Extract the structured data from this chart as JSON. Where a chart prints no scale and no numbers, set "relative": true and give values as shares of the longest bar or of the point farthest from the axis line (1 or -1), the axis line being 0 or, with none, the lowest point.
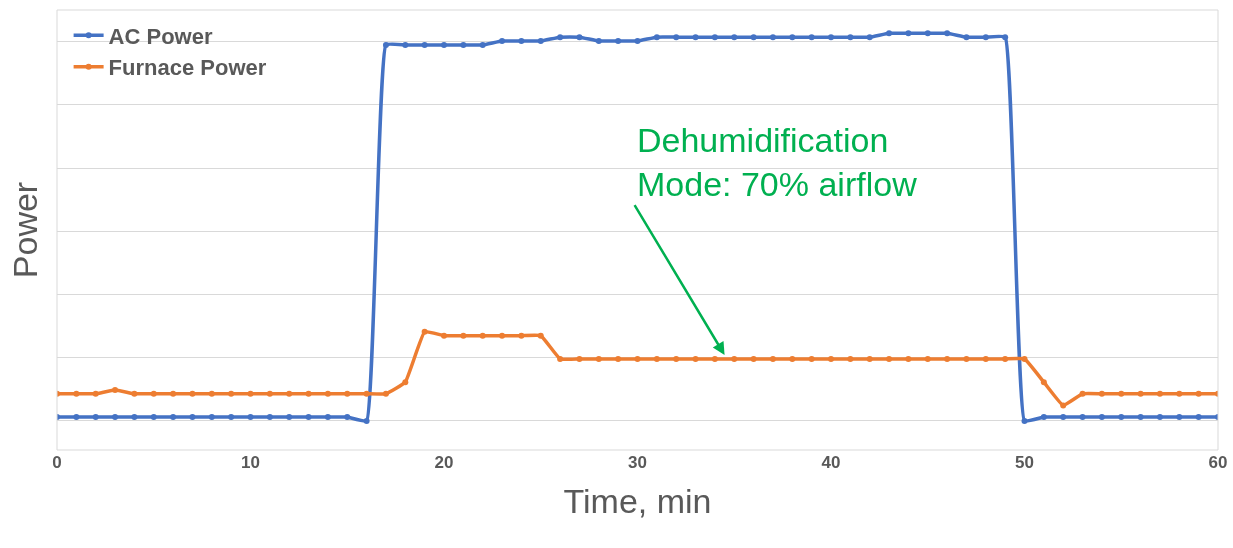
{
  "chart_data": {
    "type": "line",
    "relative": true,
    "xlabel": "Time, min",
    "ylabel": "Power",
    "x": [
      0,
      1,
      2,
      3,
      4,
      5,
      6,
      7,
      8,
      9,
      10,
      11,
      12,
      13,
      14,
      15,
      16,
      17,
      18,
      19,
      20,
      21,
      22,
      23,
      24,
      25,
      26,
      27,
      28,
      29,
      30,
      31,
      32,
      33,
      34,
      35,
      36,
      37,
      38,
      39,
      40,
      41,
      42,
      43,
      44,
      45,
      46,
      47,
      48,
      49,
      50,
      51,
      52,
      53,
      54,
      55,
      56,
      57,
      58,
      59,
      60
    ],
    "xlim": [
      0,
      60
    ],
    "xticks": [
      0,
      10,
      20,
      30,
      40,
      50,
      60
    ],
    "series": [
      {
        "name": "AC Power",
        "color": "#4472c4",
        "values": [
          0.01,
          0.01,
          0.01,
          0.01,
          0.01,
          0.01,
          0.01,
          0.01,
          0.01,
          0.01,
          0.01,
          0.01,
          0.01,
          0.01,
          0.01,
          0.01,
          0,
          0.97,
          0.97,
          0.97,
          0.97,
          0.97,
          0.97,
          0.98,
          0.98,
          0.98,
          0.99,
          0.99,
          0.98,
          0.98,
          0.98,
          0.99,
          0.99,
          0.99,
          0.99,
          0.99,
          0.99,
          0.99,
          0.99,
          0.99,
          0.99,
          0.99,
          0.99,
          1.0,
          1.0,
          1.0,
          1.0,
          0.99,
          0.99,
          0.99,
          0,
          0.01,
          0.01,
          0.01,
          0.01,
          0.01,
          0.01,
          0.01,
          0.01,
          0.01,
          0.01
        ]
      },
      {
        "name": "Furnace Power",
        "color": "#ed7d31",
        "values": [
          0.07,
          0.07,
          0.07,
          0.08,
          0.07,
          0.07,
          0.07,
          0.07,
          0.07,
          0.07,
          0.07,
          0.07,
          0.07,
          0.07,
          0.07,
          0.07,
          0.07,
          0.07,
          0.1,
          0.23,
          0.22,
          0.22,
          0.22,
          0.22,
          0.22,
          0.22,
          0.16,
          0.16,
          0.16,
          0.16,
          0.16,
          0.16,
          0.16,
          0.16,
          0.16,
          0.16,
          0.16,
          0.16,
          0.16,
          0.16,
          0.16,
          0.16,
          0.16,
          0.16,
          0.16,
          0.16,
          0.16,
          0.16,
          0.16,
          0.16,
          0.16,
          0.1,
          0.04,
          0.07,
          0.07,
          0.07,
          0.07,
          0.07,
          0.07,
          0.07,
          0.07
        ]
      }
    ],
    "annotations": [
      {
        "text": "Dehumidification\nMode: 70% airflow",
        "x": 34.5,
        "y": 0.17
      }
    ],
    "grid": "y",
    "legend": "top left",
    "marker": "circle",
    "line_style": "solid"
  }
}
